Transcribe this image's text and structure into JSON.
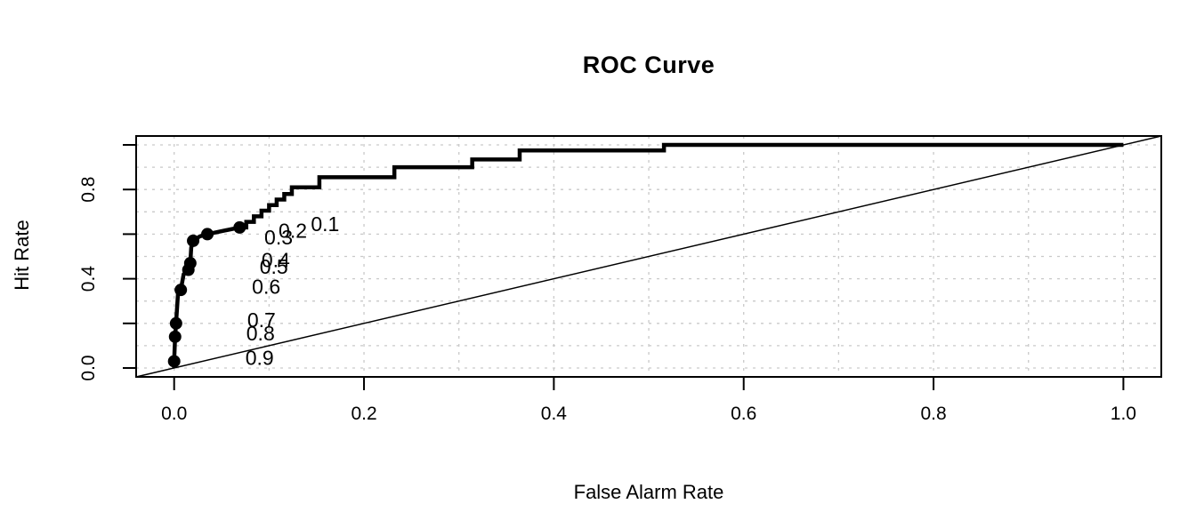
{
  "figure": {
    "kind": "statistical-plot",
    "background": "#ffffff"
  },
  "chart_data": {
    "type": "line",
    "title": "ROC Curve",
    "xlabel": "False Alarm Rate",
    "ylabel": "Hit Rate",
    "xlim": [
      -0.04,
      1.04
    ],
    "ylim": [
      -0.04,
      1.04
    ],
    "x_ticks": [
      0.0,
      0.2,
      0.4,
      0.6,
      0.8,
      1.0
    ],
    "x_tick_labels": [
      "0.0",
      "0.2",
      "0.4",
      "0.6",
      "0.8",
      "1.0"
    ],
    "y_ticks": [
      0.0,
      0.2,
      0.4,
      0.6,
      0.8,
      1.0
    ],
    "y_tick_labels": [
      "0.0",
      "",
      "0.4",
      "",
      "0.8",
      ""
    ],
    "grid": {
      "on": true,
      "step": 0.1,
      "line_style": "dotted",
      "color": "#c9c9c9"
    },
    "legend": {
      "shown": false
    },
    "diagonal_reference": {
      "from": [
        0,
        0
      ],
      "to": [
        1,
        1
      ],
      "color": "#000000",
      "width": 1.5
    },
    "series": [
      {
        "name": "ROC step curve",
        "style": "step-line",
        "color": "#000000",
        "line_width": 4.5,
        "points": [
          [
            0.0,
            0.0
          ],
          [
            0.0,
            0.03
          ],
          [
            0.001,
            0.14
          ],
          [
            0.002,
            0.2
          ],
          [
            0.004,
            0.33
          ],
          [
            0.007,
            0.35
          ],
          [
            0.01,
            0.42
          ],
          [
            0.015,
            0.44
          ],
          [
            0.017,
            0.47
          ],
          [
            0.018,
            0.54
          ],
          [
            0.02,
            0.57
          ],
          [
            0.027,
            0.59
          ],
          [
            0.035,
            0.6
          ],
          [
            0.069,
            0.63
          ],
          [
            0.076,
            0.63
          ],
          [
            0.076,
            0.655
          ],
          [
            0.084,
            0.655
          ],
          [
            0.084,
            0.68
          ],
          [
            0.092,
            0.68
          ],
          [
            0.092,
            0.705
          ],
          [
            0.1,
            0.705
          ],
          [
            0.1,
            0.73
          ],
          [
            0.108,
            0.73
          ],
          [
            0.108,
            0.755
          ],
          [
            0.116,
            0.755
          ],
          [
            0.116,
            0.78
          ],
          [
            0.124,
            0.78
          ],
          [
            0.124,
            0.81
          ],
          [
            0.153,
            0.81
          ],
          [
            0.153,
            0.855
          ],
          [
            0.232,
            0.855
          ],
          [
            0.232,
            0.9
          ],
          [
            0.314,
            0.9
          ],
          [
            0.314,
            0.935
          ],
          [
            0.364,
            0.935
          ],
          [
            0.364,
            0.975
          ],
          [
            0.516,
            0.975
          ],
          [
            0.516,
            1.0
          ],
          [
            1.0,
            1.0
          ]
        ]
      }
    ],
    "threshold_points": [
      {
        "label": "0.9",
        "fa": 0.0,
        "hit": 0.03
      },
      {
        "label": "0.8",
        "fa": 0.001,
        "hit": 0.14
      },
      {
        "label": "0.7",
        "fa": 0.002,
        "hit": 0.2
      },
      {
        "label": "0.6",
        "fa": 0.007,
        "hit": 0.35
      },
      {
        "label": "0.5",
        "fa": 0.015,
        "hit": 0.44
      },
      {
        "label": "0.4",
        "fa": 0.017,
        "hit": 0.47
      },
      {
        "label": "0.3",
        "fa": 0.02,
        "hit": 0.57
      },
      {
        "label": "0.2",
        "fa": 0.035,
        "hit": 0.6
      },
      {
        "label": "0.1",
        "fa": 0.069,
        "hit": 0.63
      }
    ],
    "threshold_marker": {
      "shape": "filled-circle",
      "radius": 7,
      "color": "#000000"
    },
    "threshold_label_offset": [
      0.09,
      0.015
    ],
    "threshold_label_font_size": 23,
    "axis_color": "#000000"
  }
}
